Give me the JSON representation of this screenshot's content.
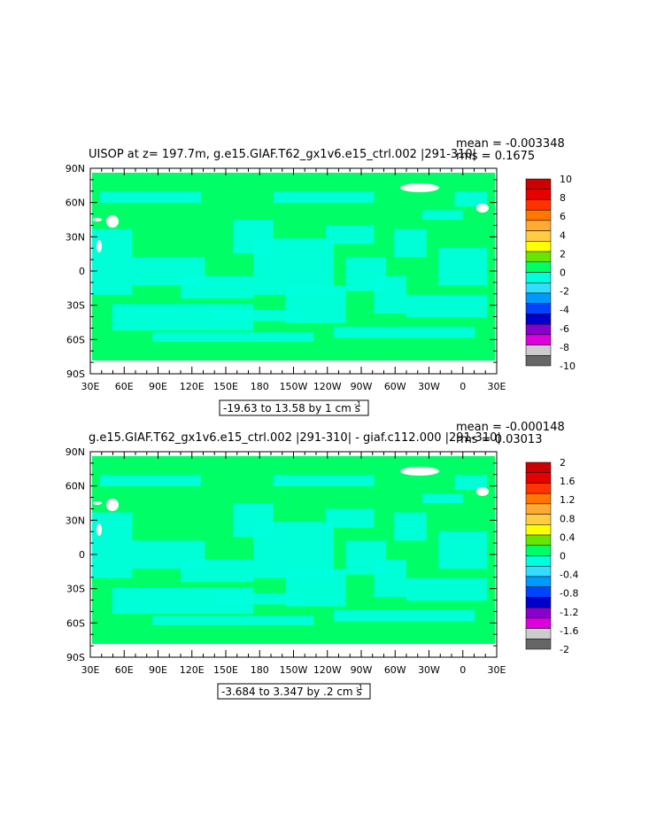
{
  "colors": {
    "land": "#00ff66",
    "negative": "#00ffdd",
    "outline": "#000000"
  },
  "top": {
    "title": "UISOP at z= 197.7m, g.e15.GIAF.T62_gx1v6.e15_ctrl.002 |291-310|",
    "mean": "mean = -0.003348",
    "rms": "rms = 0.1675",
    "range": "-19.63 to 13.58 by 1 cm s",
    "range_unit_exp": "-1",
    "lat_labels": [
      "90N",
      "60N",
      "30N",
      "0",
      "30S",
      "60S",
      "90S"
    ],
    "lon_labels": [
      "30E",
      "60E",
      "90E",
      "120E",
      "150E",
      "180",
      "150W",
      "120W",
      "90W",
      "60W",
      "30W",
      "0",
      "30E"
    ],
    "colorbar": {
      "labels": [
        "10",
        "8",
        "6",
        "4",
        "2",
        "0",
        "-2",
        "-4",
        "-6",
        "-8",
        "-10"
      ],
      "colors": [
        "#cc0000",
        "#e60000",
        "#ff3300",
        "#ff7700",
        "#ffaa33",
        "#ffcc44",
        "#ffff00",
        "#66e600",
        "#00ff66",
        "#00ffdd",
        "#33ddff",
        "#0099ff",
        "#0044ff",
        "#0000cc",
        "#8800cc",
        "#dd00dd",
        "#cccccc",
        "#666666"
      ]
    }
  },
  "bottom": {
    "title": "g.e15.GIAF.T62_gx1v6.e15_ctrl.002 |291-310| - giaf.c112.000 |291-310|",
    "mean": "mean = -0.000148",
    "rms": "rms = 0.03013",
    "range": "-3.684 to 3.347 by .2 cm s",
    "range_unit_exp": "-1",
    "lat_labels": [
      "90N",
      "60N",
      "30N",
      "0",
      "30S",
      "60S",
      "90S"
    ],
    "lon_labels": [
      "30E",
      "60E",
      "90E",
      "120E",
      "150E",
      "180",
      "150W",
      "120W",
      "90W",
      "60W",
      "30W",
      "0",
      "30E"
    ],
    "colorbar": {
      "labels": [
        "2",
        "1.6",
        "1.2",
        "0.8",
        "0.4",
        "0",
        "-0.4",
        "-0.8",
        "-1.2",
        "-1.6",
        "-2"
      ],
      "colors": [
        "#cc0000",
        "#e60000",
        "#ff3300",
        "#ff7700",
        "#ffaa33",
        "#ffcc44",
        "#ffff00",
        "#66e600",
        "#00ff66",
        "#00ffdd",
        "#33ddff",
        "#0099ff",
        "#0044ff",
        "#0000cc",
        "#8800cc",
        "#dd00dd",
        "#cccccc",
        "#666666"
      ]
    }
  }
}
